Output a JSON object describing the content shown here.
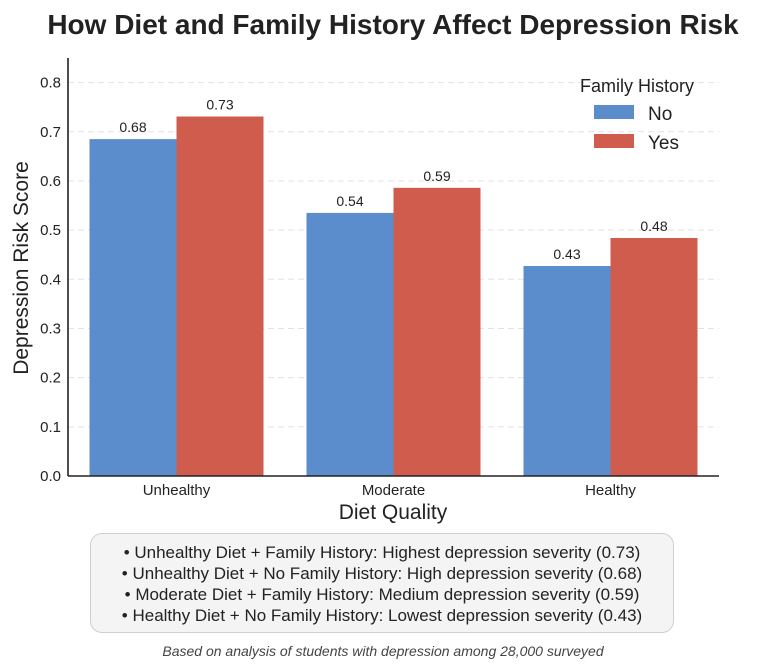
{
  "chart_data": {
    "type": "bar",
    "title": "How Diet and Family History Affect Depression Risk",
    "xlabel": "Diet Quality",
    "ylabel": "Depression Risk Score",
    "categories": [
      "Unhealthy",
      "Moderate",
      "Healthy"
    ],
    "ylim": [
      0,
      0.85
    ],
    "yticks": [
      "0.0",
      "0.1",
      "0.2",
      "0.3",
      "0.4",
      "0.5",
      "0.6",
      "0.7",
      "0.8"
    ],
    "grid": "horizontal dashed",
    "legend": {
      "title": "Family History",
      "placement": "top-right"
    },
    "series": [
      {
        "name": "No",
        "color": "#5b8ccc",
        "values": [
          0.685,
          0.535,
          0.427
        ],
        "labels": [
          "0.68",
          "0.54",
          "0.43"
        ]
      },
      {
        "name": "Yes",
        "color": "#d05c4e",
        "values": [
          0.731,
          0.586,
          0.484
        ],
        "labels": [
          "0.73",
          "0.59",
          "0.48"
        ]
      }
    ]
  },
  "summary": {
    "lines": [
      "• Unhealthy Diet + Family History: Highest depression severity (0.73)",
      "• Unhealthy Diet + No Family History: High depression severity (0.68)",
      "• Moderate Diet + Family History: Medium depression severity (0.59)",
      "• Healthy Diet + No Family History: Lowest depression severity (0.43)"
    ]
  },
  "footnote": "Based on analysis of students with depression among 28,000 surveyed"
}
